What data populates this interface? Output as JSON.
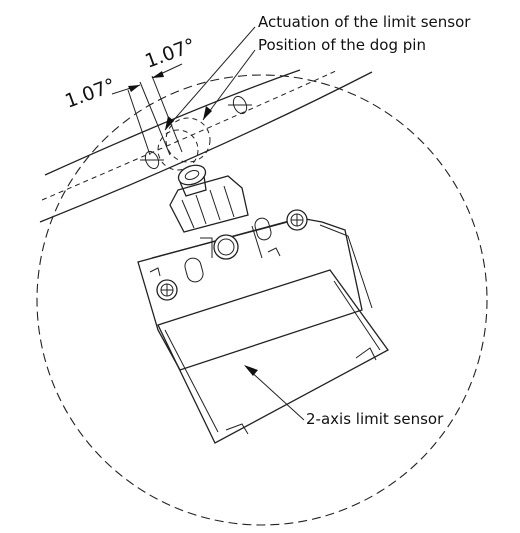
{
  "labels": {
    "actuation": "Actuation of the limit sensor",
    "dog_pin": "Position of the dog pin",
    "angle_left": "1.07°",
    "angle_right": "1.07°",
    "sensor": "2-axis limit sensor"
  }
}
